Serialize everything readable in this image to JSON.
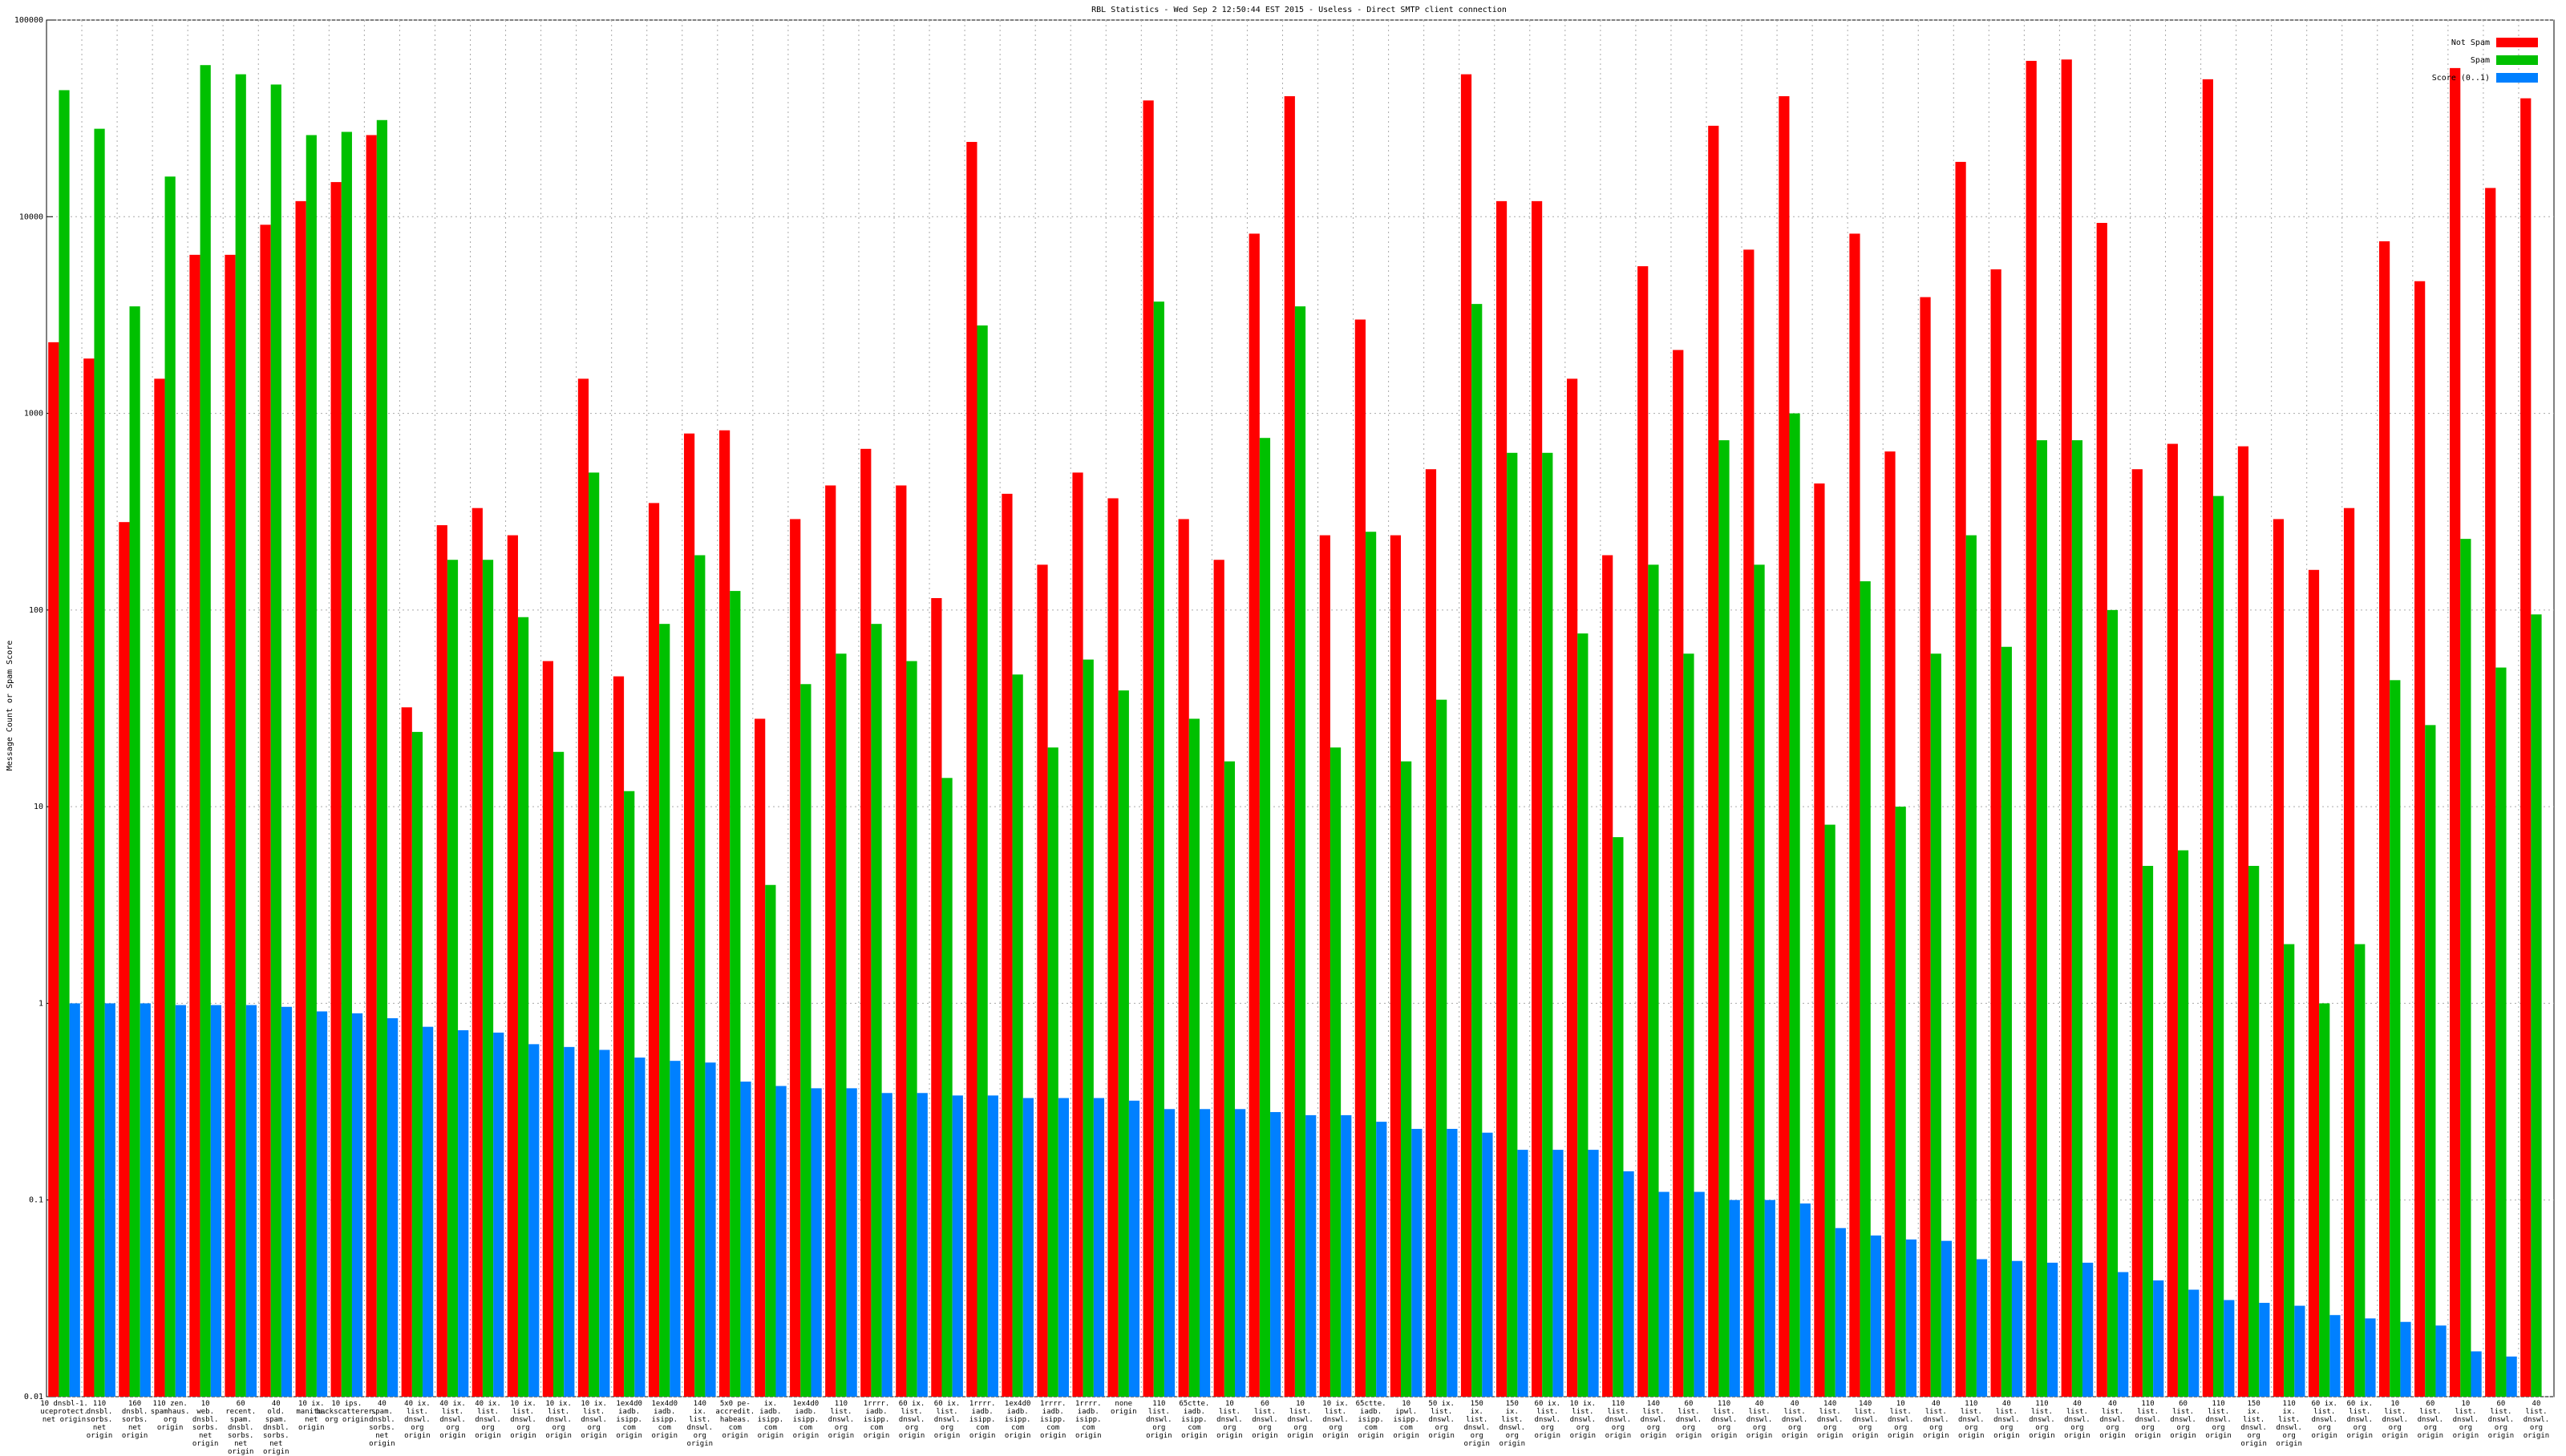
{
  "chart_data": {
    "type": "bar",
    "title": "RBL Statistics - Wed Sep  2 12:50:44 EST 2015 - Useless - Direct SMTP client connection",
    "y_label": "Message Count or Spam Score",
    "log_scale": true,
    "grid": true,
    "legend": "upper right",
    "ylim": [
      0.01,
      100000
    ],
    "yticks": [
      0.01,
      0.1,
      1,
      10,
      100,
      1000,
      10000,
      100000
    ],
    "categories": [
      "10 dnsbl-1. uceprotect. net origin",
      "110 dnsbl. sorbs. net origin",
      "160 dnsbl. sorbs. net origin",
      "110 zen. spamhaus. org origin",
      "10 web. dnsbl. sorbs. net origin",
      "60 recent. spam. dnsbl. sorbs. net origin",
      "40 old. spam. dnsbl. sorbs. net origin",
      "10 ix. manitu. net origin",
      "10 ips. backscatterer. org origin",
      "40 spam. dnsbl. sorbs. net origin",
      "40 ix. list. dnswl. org origin",
      "40 ix. list. dnswl. org origin",
      "40 ix. list. dnswl. org origin",
      "10 ix. list. dnswl. org origin",
      "10 ix. list. dnswl. org origin",
      "10 ix. list. dnswl. org origin",
      "1ex4d0 iadb. isipp. com origin",
      "1ex4d0 iadb. isipp. com origin",
      "140 ix. list. dnswl. org origin",
      "5x0 pe-accredit. habeas. com origin",
      "ix. iadb. isipp. com origin",
      "1ex4d0 iadb. isipp. com origin",
      "110 list. dnswl. org origin",
      "1rrrr. iadb. isipp. com origin",
      "60 ix. list. dnswl. org origin",
      "60 ix. list. dnswl. org origin",
      "1rrrr. iadb. isipp. com origin",
      "1ex4d0 iadb. isipp. com origin",
      "1rrrr. iadb. isipp. com origin",
      "1rrrr. iadb. isipp. com origin",
      "none origin",
      "110 list. dnswl. org origin",
      "65ctte. iadb. isipp. com origin",
      "10 list. dnswl. org origin",
      "60 list. dnswl. org origin",
      "10 list. dnswl. org origin",
      "10 ix. list. dnswl. org origin",
      "65ctte. iadb. isipp. com origin",
      "10 ipwl. isipp. com origin",
      "50 ix. list. dnswl. org origin",
      "150 ix. list. dnswl. org origin",
      "150 ix. list. dnswl. org origin",
      "60 ix. list. dnswl. org origin",
      "10 ix. list. dnswl. org origin",
      "110 list. dnswl. org origin",
      "140 list. dnswl. org origin",
      "60 list. dnswl. org origin",
      "110 list. dnswl. org origin",
      "40 list. dnswl. org origin",
      "40 list. dnswl. org origin",
      "140 list. dnswl. org origin",
      "140 list. dnswl. org origin",
      "10 list. dnswl. org origin",
      "40 list. dnswl. org origin",
      "110 list. dnswl. org origin",
      "40 list. dnswl. org origin",
      "110 list. dnswl. org origin",
      "40 list. dnswl. org origin",
      "40 list. dnswl. org origin",
      "110 list. dnswl. org origin",
      "60 list. dnswl. org origin",
      "110 list. dnswl. org origin",
      "150 ix. list. dnswl. org origin",
      "110 ix. list. dnswl. org origin",
      "60 ix. list. dnswl. org origin",
      "60 ix. list. dnswl. org origin",
      "10 list. dnswl. org origin",
      "60 list. dnswl. org origin",
      "10 list. dnswl. org origin",
      "60 list. dnswl. org origin",
      "40 list. dnswl. org origin"
    ],
    "series": [
      {
        "name": "Not Spam",
        "color": "#ff0000",
        "values": [
          2300,
          1900,
          280,
          1500,
          6400,
          6400,
          9100,
          12000,
          15000,
          26000,
          32,
          270,
          330,
          240,
          55,
          1500,
          46,
          350,
          790,
          820,
          28,
          290,
          430,
          660,
          430,
          115,
          24000,
          390,
          170,
          500,
          370,
          39000,
          290,
          180,
          8200,
          41000,
          240,
          3000,
          240,
          520,
          53000,
          12000,
          12000,
          1500,
          190,
          5600,
          2100,
          29000,
          6800,
          41000,
          440,
          8200,
          640,
          3900,
          19000,
          5400,
          62000,
          63000,
          9300,
          520,
          700,
          50000,
          680,
          290,
          160,
          330,
          7500,
          4700,
          57000,
          14000,
          40000
        ]
      },
      {
        "name": "Spam",
        "color": "#00c000",
        "values": [
          44000,
          28000,
          3500,
          16000,
          59000,
          53000,
          47000,
          26000,
          27000,
          31000,
          24,
          180,
          180,
          92,
          19,
          500,
          12,
          85,
          190,
          125,
          4,
          42,
          60,
          85,
          55,
          14,
          2800,
          47,
          20,
          56,
          39,
          3700,
          28,
          17,
          750,
          3500,
          20,
          250,
          17,
          35,
          3600,
          630,
          630,
          76,
          7,
          170,
          60,
          730,
          170,
          1000,
          8.1,
          140,
          10,
          60,
          240,
          65,
          730,
          730,
          100,
          5,
          6,
          380,
          5,
          2,
          1,
          2,
          44,
          26,
          230,
          51,
          95
        ]
      },
      {
        "name": "Score (0..1)",
        "color": "#0080ff",
        "values": [
          1,
          1,
          1,
          0.98,
          0.98,
          0.98,
          0.96,
          0.91,
          0.89,
          0.84,
          0.76,
          0.73,
          0.71,
          0.62,
          0.6,
          0.58,
          0.53,
          0.51,
          0.5,
          0.4,
          0.38,
          0.37,
          0.37,
          0.35,
          0.35,
          0.34,
          0.34,
          0.33,
          0.33,
          0.33,
          0.32,
          0.29,
          0.29,
          0.29,
          0.28,
          0.27,
          0.27,
          0.25,
          0.23,
          0.23,
          0.22,
          0.18,
          0.18,
          0.18,
          0.14,
          0.11,
          0.11,
          0.1,
          0.1,
          0.096,
          0.072,
          0.066,
          0.063,
          0.062,
          0.05,
          0.049,
          0.048,
          0.048,
          0.043,
          0.039,
          0.035,
          0.031,
          0.03,
          0.029,
          0.026,
          0.025,
          0.024,
          0.023,
          0.017,
          0.016,
          null
        ]
      }
    ]
  }
}
